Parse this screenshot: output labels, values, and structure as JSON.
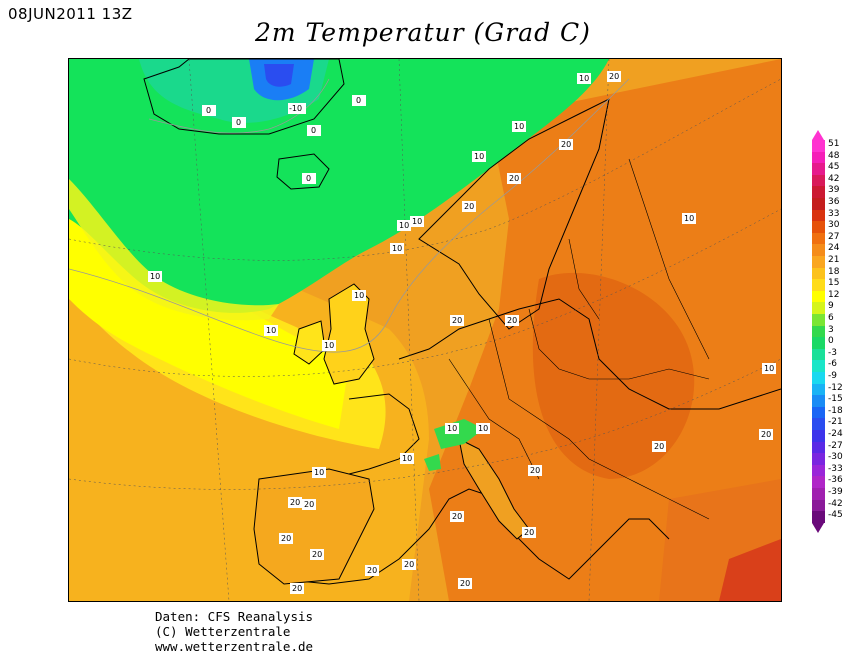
{
  "header": {
    "datetime": "08JUN2011 13Z",
    "title": "2m Temperatur (Grad C)"
  },
  "footer": {
    "line1": "Daten: CFS Reanalysis",
    "line2": "(C) Wetterzentrale",
    "line3": "www.wetterzentrale.de"
  },
  "legend": {
    "unit": "Grad C",
    "levels": [
      {
        "value": "51",
        "color": "#ff33d0"
      },
      {
        "value": "48",
        "color": "#f51fb8"
      },
      {
        "value": "45",
        "color": "#e61a8c"
      },
      {
        "value": "42",
        "color": "#d91a5a"
      },
      {
        "value": "39",
        "color": "#cc1a33"
      },
      {
        "value": "36",
        "color": "#c41e1e"
      },
      {
        "value": "33",
        "color": "#d9330f"
      },
      {
        "value": "30",
        "color": "#e6520a"
      },
      {
        "value": "27",
        "color": "#f07010"
      },
      {
        "value": "24",
        "color": "#f58c1a"
      },
      {
        "value": "21",
        "color": "#faa620"
      },
      {
        "value": "18",
        "color": "#fcc21c"
      },
      {
        "value": "15",
        "color": "#ffdc1a"
      },
      {
        "value": "12",
        "color": "#ffff00"
      },
      {
        "value": "9",
        "color": "#d6f51a"
      },
      {
        "value": "6",
        "color": "#7ae633"
      },
      {
        "value": "3",
        "color": "#33d94d"
      },
      {
        "value": "0",
        "color": "#1ad966"
      },
      {
        "value": "-3",
        "color": "#1ae099"
      },
      {
        "value": "-6",
        "color": "#1ae6c8"
      },
      {
        "value": "-9",
        "color": "#1ad9f0"
      },
      {
        "value": "-12",
        "color": "#1ab3f5"
      },
      {
        "value": "-15",
        "color": "#1a8cf5"
      },
      {
        "value": "-18",
        "color": "#1a66f5"
      },
      {
        "value": "-21",
        "color": "#2a4df0"
      },
      {
        "value": "-24",
        "color": "#3d33eb"
      },
      {
        "value": "-27",
        "color": "#5a29e6"
      },
      {
        "value": "-30",
        "color": "#7a26e0"
      },
      {
        "value": "-33",
        "color": "#9a26d9"
      },
      {
        "value": "-36",
        "color": "#b026c8"
      },
      {
        "value": "-39",
        "color": "#a020b0"
      },
      {
        "value": "-42",
        "color": "#8a1a99"
      },
      {
        "value": "-45",
        "color": "#6a0a7a"
      }
    ]
  },
  "map": {
    "contour_labels": [
      "10",
      "20",
      "0",
      "-10"
    ]
  }
}
